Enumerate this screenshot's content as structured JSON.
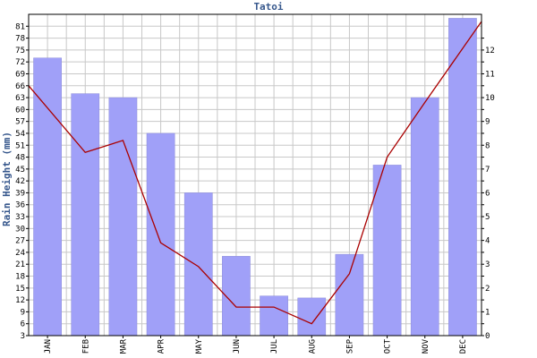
{
  "chart_data": {
    "type": "bar",
    "title": "Tatoi",
    "ylabel": "Rain Height (mm)",
    "xlabel": "",
    "categories": [
      "JAN",
      "FEB",
      "MAR",
      "APR",
      "MAY",
      "JUN",
      "JUL",
      "AUG",
      "SEP",
      "OCT",
      "NOV",
      "DEC"
    ],
    "bar_series": {
      "values": [
        73,
        64,
        63,
        54,
        39,
        23,
        13,
        12.5,
        23.5,
        46,
        63,
        83
      ],
      "color": "#a0a0f8"
    },
    "line_series": {
      "values": [
        10.5,
        7.7,
        8.2,
        3.9,
        2.9,
        1.2,
        1.2,
        0.5,
        2.6,
        7.5,
        9.8,
        13.2
      ],
      "color": "#aa0000",
      "axis": "right"
    },
    "ylim": [
      3,
      84
    ],
    "yticks": [
      3,
      6,
      9,
      12,
      15,
      18,
      21,
      24,
      27,
      30,
      33,
      36,
      39,
      42,
      45,
      48,
      51,
      54,
      57,
      60,
      63,
      66,
      69,
      72,
      75,
      78,
      81
    ],
    "y2lim": [
      0,
      13.5
    ],
    "y2ticks": [
      0,
      0.5,
      1,
      1.5,
      2,
      2.5,
      3,
      3.5,
      4,
      4.5,
      5,
      5.5,
      6,
      6.5,
      7,
      7.5,
      8,
      8.5,
      9,
      9.5,
      10,
      10.5,
      11,
      11.5,
      12,
      12.5
    ],
    "y2tick_labels": [
      "0",
      "",
      "1",
      "",
      "2",
      "",
      "3",
      "",
      "4",
      "",
      "5",
      "",
      "6",
      "",
      "7",
      "",
      "8",
      "",
      "9",
      "",
      "10",
      "",
      "11",
      "",
      "12",
      ""
    ],
    "grid": true,
    "colors": {
      "grid": "#c8c8c8",
      "frame": "#000000",
      "title": "#36578c"
    }
  }
}
